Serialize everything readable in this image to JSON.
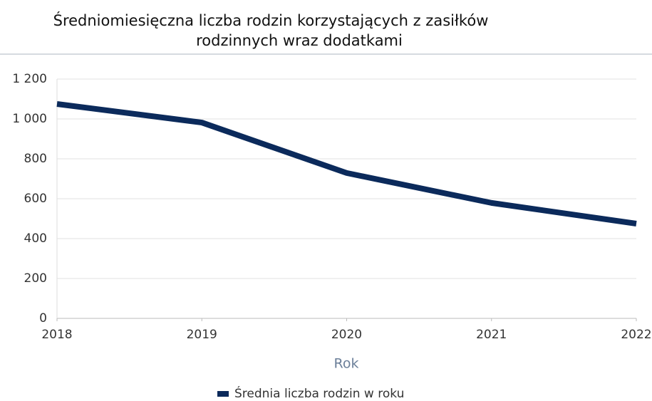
{
  "chart_data": {
    "type": "line",
    "title": [
      "Średniomiesięczna liczba rodzin korzystających z zasiłków",
      "rodzinnych wraz dodatkami"
    ],
    "x_label": "Rok",
    "x": [
      2018,
      2019,
      2020,
      2021,
      2022
    ],
    "series": [
      {
        "name": "Średnia liczba rodzin w roku",
        "color": "#0b2a5b",
        "values": [
          1075,
          982,
          729,
          579,
          475
        ]
      }
    ],
    "xlim": [
      2018,
      2022
    ],
    "xticks": [
      2018,
      2019,
      2020,
      2021,
      2022
    ],
    "ylim": [
      0,
      1200
    ],
    "yticks": [
      0,
      200,
      400,
      600,
      800,
      {
        "value": 1000,
        "label": "1 000"
      },
      {
        "value": 1200,
        "label": "1 200"
      }
    ],
    "grid": true,
    "legend": "bottom"
  }
}
